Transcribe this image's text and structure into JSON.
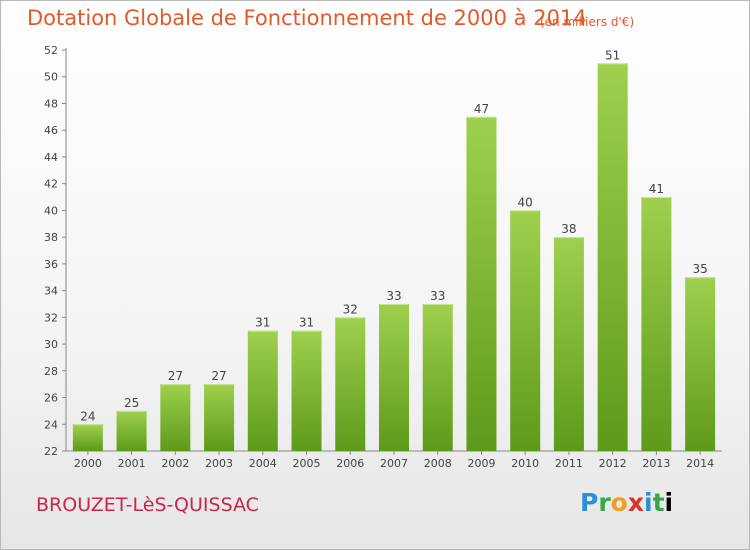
{
  "header": {
    "title": "Dotation Globale de Fonctionnement de 2000 à 2014",
    "unit": "(en milliers d'€)"
  },
  "footer": {
    "city": "BROUZET-LèS-QUISSAC",
    "logo": "Proxiti"
  },
  "colors": {
    "bar_light": "#9ed04e",
    "bar_dark": "#5e9a1a",
    "title": "#e05a2a",
    "city": "#c8264a"
  },
  "chart_data": {
    "type": "bar",
    "categories": [
      "2000",
      "2001",
      "2002",
      "2003",
      "2004",
      "2005",
      "2006",
      "2007",
      "2008",
      "2009",
      "2010",
      "2011",
      "2012",
      "2013",
      "2014"
    ],
    "values": [
      24,
      25,
      27,
      27,
      31,
      31,
      32,
      33,
      33,
      47,
      40,
      38,
      51,
      41,
      35
    ],
    "title": "Dotation Globale de Fonctionnement de 2000 à 2014",
    "subtitle": "(en milliers d'€)",
    "xlabel": "",
    "ylabel": "",
    "ylim": [
      22,
      52
    ],
    "ytick_step": 2,
    "grid": false,
    "legend": "none"
  }
}
